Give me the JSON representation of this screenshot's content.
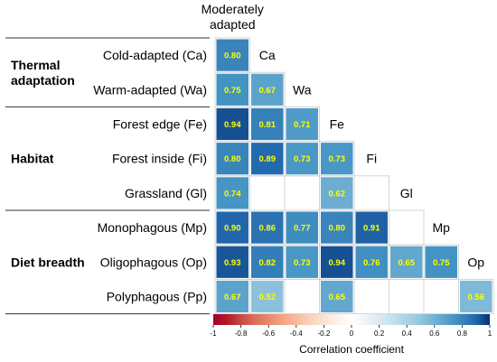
{
  "chart_data": {
    "type": "heatmap",
    "columns": [
      "Moderately adapted",
      "Ca",
      "Wa",
      "Fe",
      "Fi",
      "Gl",
      "Mp",
      "Op"
    ],
    "rows": [
      "Cold-adapted (Ca)",
      "Warm-adapted (Wa)",
      "Forest edge (Fe)",
      "Forest inside (Fi)",
      "Grassland (Gl)",
      "Monophagous (Mp)",
      "Oligophagous (Op)",
      "Polyphagous (Pp)"
    ],
    "groups": [
      {
        "label": "Thermal adaptation",
        "rows": [
          0,
          1
        ]
      },
      {
        "label": "Habitat",
        "rows": [
          2,
          3,
          4
        ]
      },
      {
        "label": "Diet breadth",
        "rows": [
          5,
          6,
          7
        ]
      }
    ],
    "values": [
      [
        0.8,
        null,
        null,
        null,
        null,
        null,
        null,
        null
      ],
      [
        0.75,
        0.67,
        null,
        null,
        null,
        null,
        null,
        null
      ],
      [
        0.94,
        0.81,
        0.71,
        null,
        null,
        null,
        null,
        null
      ],
      [
        0.8,
        0.89,
        0.73,
        0.73,
        null,
        null,
        null,
        null
      ],
      [
        0.74,
        null,
        null,
        0.62,
        null,
        null,
        null,
        null
      ],
      [
        0.9,
        0.86,
        0.77,
        0.8,
        0.91,
        null,
        null,
        null
      ],
      [
        0.93,
        0.82,
        0.73,
        0.94,
        0.76,
        0.65,
        0.75,
        null
      ],
      [
        0.67,
        0.52,
        null,
        0.65,
        null,
        null,
        null,
        0.56
      ]
    ],
    "colorbar": {
      "title": "Correlation coefficient",
      "range": [
        -1,
        1
      ],
      "ticks": [
        "-1",
        "-0.8",
        "-0.6",
        "-0.4",
        "-0.2",
        "0",
        "0.2",
        "0.4",
        "0.6",
        "0.8",
        "1"
      ],
      "low_color": "#a50026",
      "mid_color": "#ffffff",
      "high_color": "#08306b"
    }
  }
}
